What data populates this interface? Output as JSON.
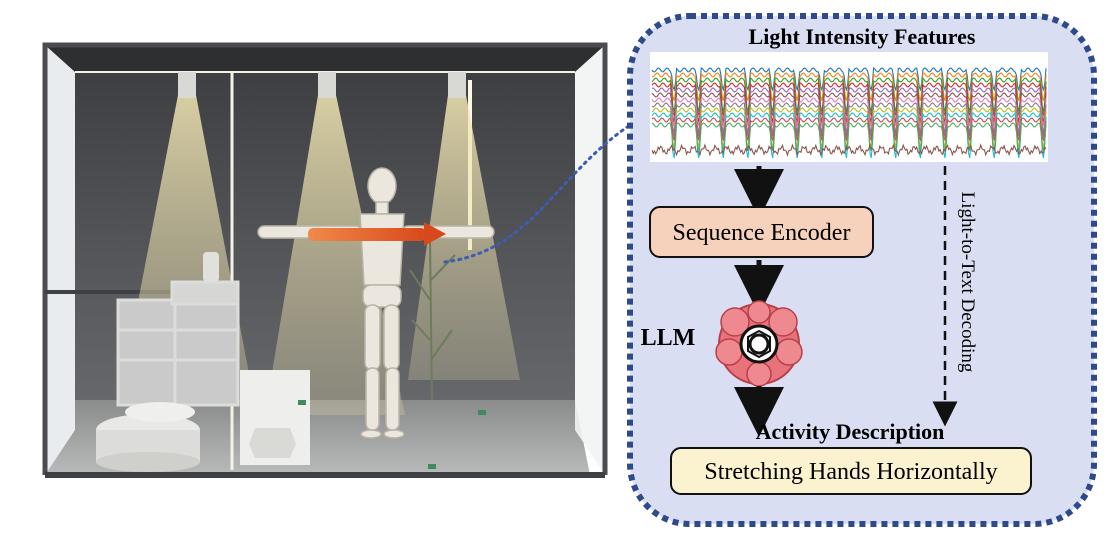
{
  "panel": {
    "title": "Light Intensity Features",
    "encoder_label": "Sequence Encoder",
    "llm_label": "LLM",
    "output_heading": "Activity Description",
    "output_text": "Stretching Hands Horizontally",
    "side_label": "Light-to-Text Decoding"
  },
  "colors": {
    "panel_bg": "#d9def2",
    "panel_border": "#2e4a8a",
    "encoder_box": "#f6d2bd",
    "output_box": "#fbf2cf",
    "brain": "#e9737a",
    "arrow_highlight": "#e0561c"
  },
  "icons": [
    "brain-icon",
    "openai-logo-icon",
    "humanoid-figure",
    "ceiling-lamp-icon"
  ]
}
